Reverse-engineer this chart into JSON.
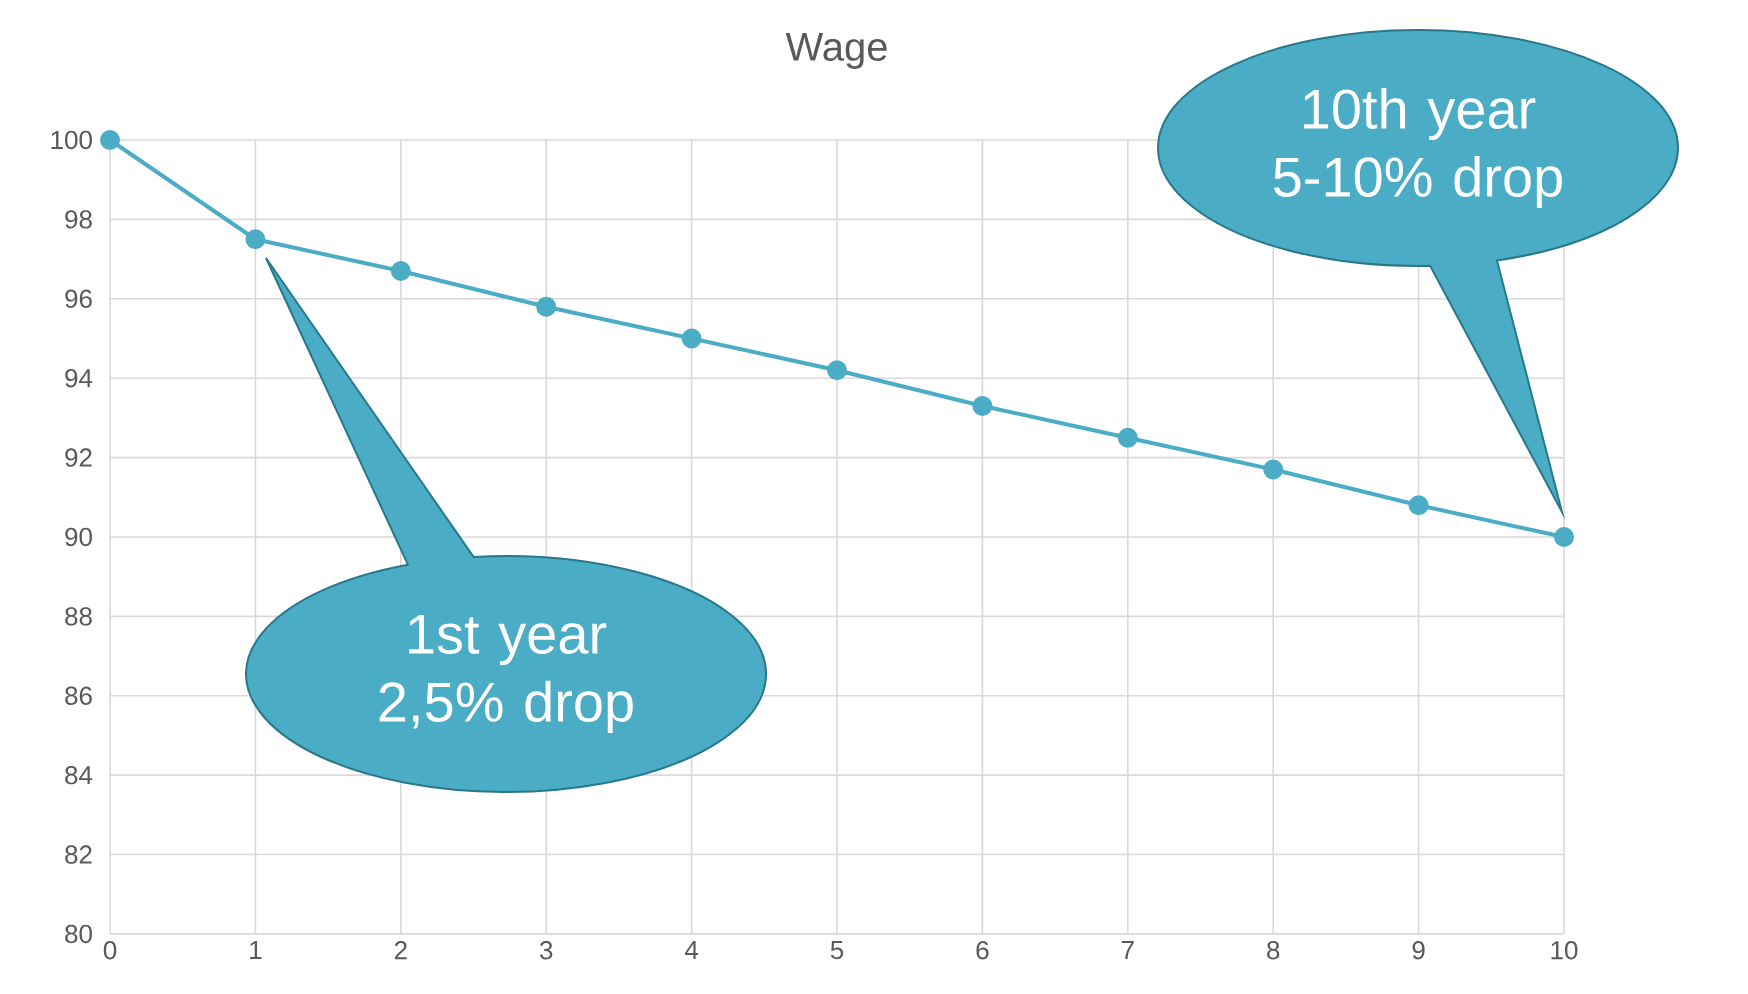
{
  "chart_data": {
    "type": "line",
    "title": "Wage",
    "x": [
      0,
      1,
      2,
      3,
      4,
      5,
      6,
      7,
      8,
      9,
      10
    ],
    "values": [
      100,
      97.5,
      96.7,
      95.8,
      95.0,
      94.2,
      93.3,
      92.5,
      91.7,
      90.8,
      90
    ],
    "color": "#4bacc6",
    "marker": "circle",
    "line_style": "solid",
    "grid": true,
    "xlim": [
      0,
      10
    ],
    "xticks": [
      0,
      1,
      2,
      3,
      4,
      5,
      6,
      7,
      8,
      9,
      10
    ],
    "ylim": [
      80,
      100
    ],
    "yticks": [
      80,
      82,
      84,
      86,
      88,
      90,
      92,
      94,
      96,
      98,
      100
    ],
    "annotations": [
      "1st year 2,5% drop",
      "10th year 5-10% drop"
    ]
  }
}
